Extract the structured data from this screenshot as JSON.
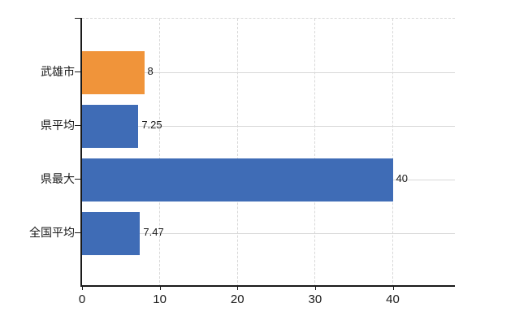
{
  "chart_data": {
    "type": "bar",
    "orientation": "horizontal",
    "title": "",
    "xlabel": "",
    "ylabel": "",
    "categories": [
      "武雄市",
      "県平均",
      "県最大",
      "全国平均"
    ],
    "values": [
      8,
      7.25,
      40,
      7.47
    ],
    "value_labels": [
      "8",
      "7.25",
      "40",
      "7.47"
    ],
    "bar_colors": [
      "#F0943A",
      "#3F6CB6",
      "#3F6CB6",
      "#3F6CB6"
    ],
    "highlight_category": "武雄市",
    "x_tick_values": [
      0,
      10,
      20,
      30,
      40
    ],
    "x_tick_labels": [
      "0",
      "10",
      "20",
      "30",
      "40"
    ],
    "xlim": [
      0,
      48
    ],
    "grid": true,
    "legend": false
  },
  "colors": {
    "bar_orange": "#F0943A",
    "bar_blue": "#3F6CB6",
    "gridline": "#D8D8D8",
    "axis": "#1A1A1A",
    "text": "#1A1A1A",
    "background": "#FFFFFF"
  }
}
